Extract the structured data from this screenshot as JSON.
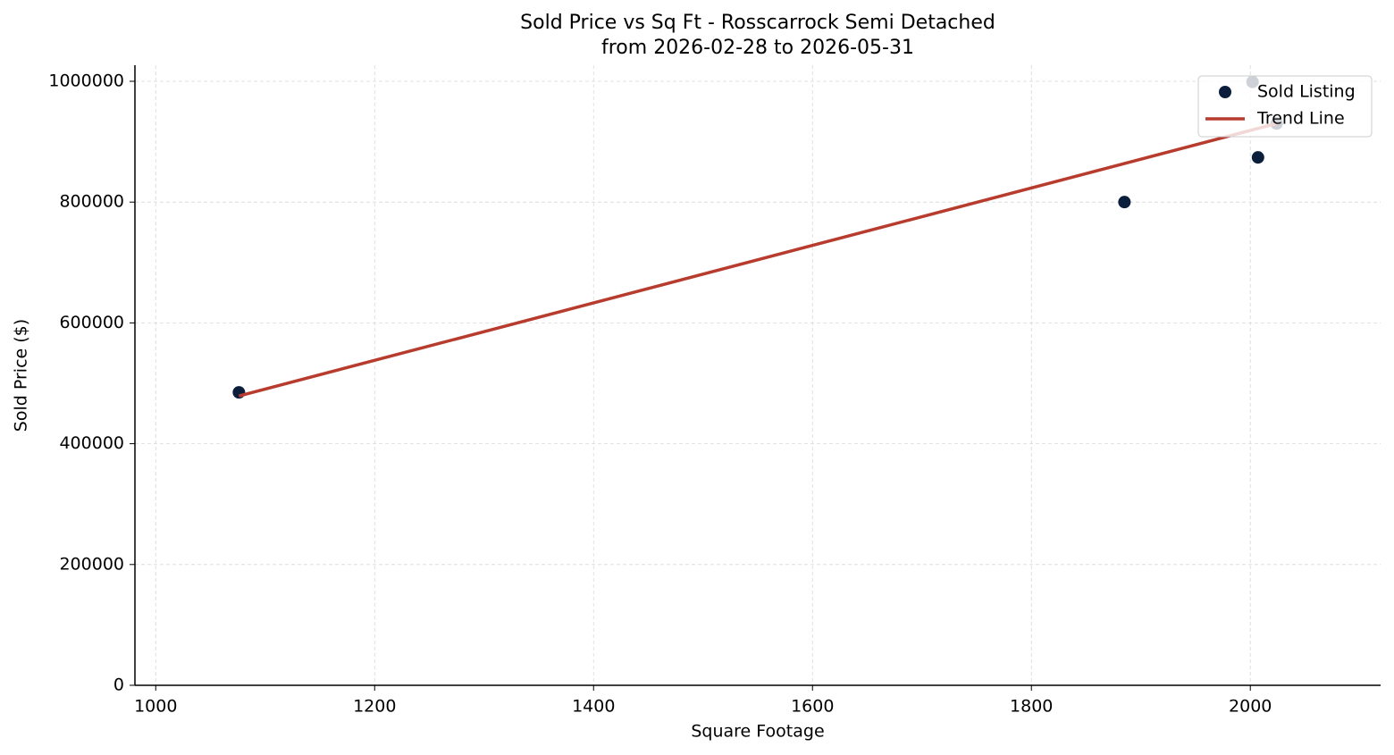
{
  "chart_data": {
    "type": "scatter",
    "title": "Sold Price vs Sq Ft - Rosscarrock Semi Detached",
    "subtitle": "from 2026-02-28 to 2026-05-31",
    "x_label": "Square Footage",
    "y_label": "Sold Price ($)",
    "xlim": [
      981,
      2119
    ],
    "ylim": [
      0,
      1026600
    ],
    "xticks": [
      1000,
      1200,
      1400,
      1600,
      1800,
      2000
    ],
    "yticks": [
      0,
      200000,
      400000,
      600000,
      800000,
      1000000
    ],
    "grid": true,
    "legend": "upper right",
    "series": [
      {
        "name": "Sold Listing",
        "type": "scatter",
        "color": "#0b1f3d",
        "x": [
          1076,
          1885,
          2007,
          2002,
          2024
        ],
        "values": [
          485000,
          800000,
          874000,
          999000,
          930000
        ]
      },
      {
        "name": "Trend Line",
        "type": "line",
        "color": "#b83c2e",
        "x": [
          1076,
          2024
        ],
        "values": [
          479000,
          930000
        ]
      }
    ]
  }
}
